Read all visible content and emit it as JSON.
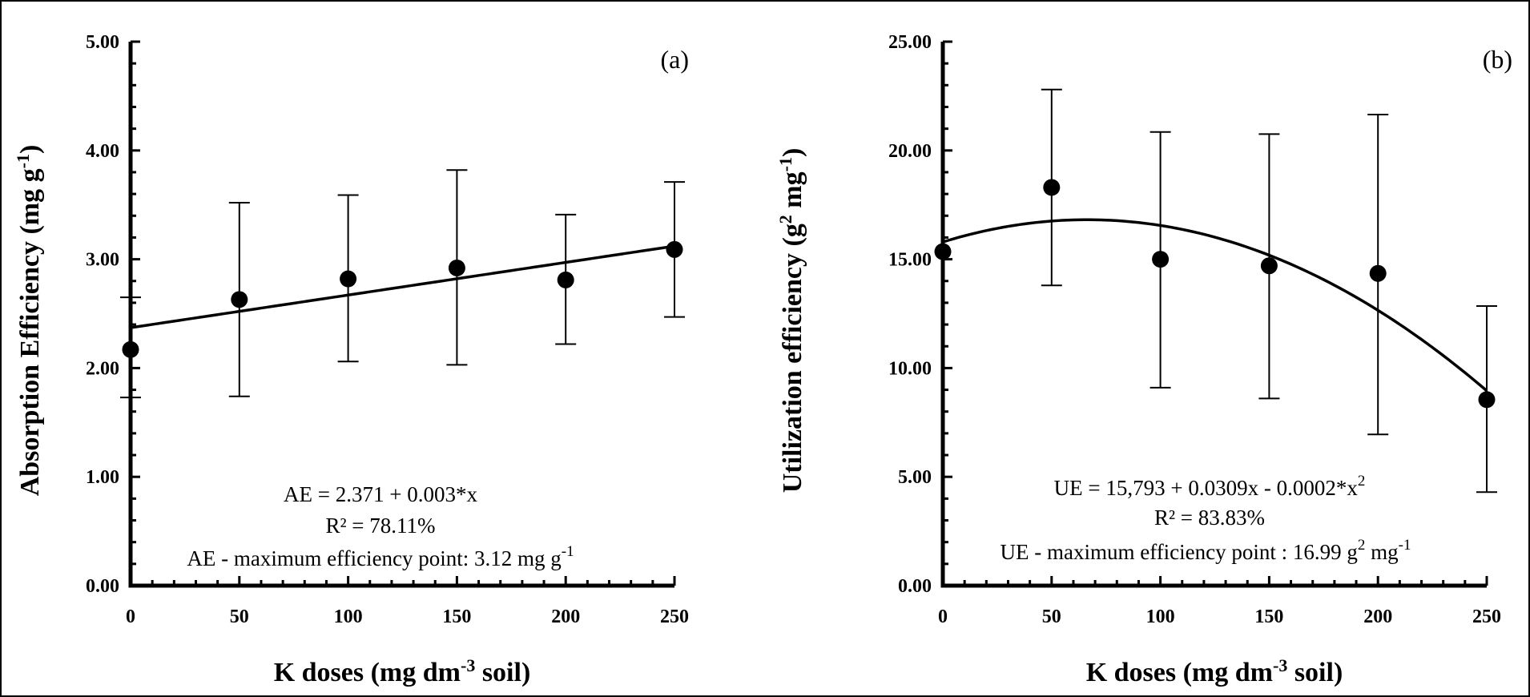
{
  "chart_data": [
    {
      "type": "scatter",
      "panel_label": "(a)",
      "x": [
        0,
        50,
        100,
        150,
        200,
        250
      ],
      "y": [
        2.17,
        2.63,
        2.82,
        2.92,
        2.81,
        3.09
      ],
      "y_err_upper": [
        2.65,
        3.52,
        3.59,
        3.82,
        3.41,
        3.71
      ],
      "y_err_lower": [
        1.73,
        1.74,
        2.06,
        2.03,
        2.22,
        2.47
      ],
      "fit": {
        "type": "linear",
        "coef": [
          2.371,
          0.003
        ]
      },
      "xlim": [
        0,
        250
      ],
      "ylim": [
        0,
        5
      ],
      "xticks": [
        "0",
        "50",
        "100",
        "150",
        "200",
        "250"
      ],
      "yticks": [
        "0.00",
        "1.00",
        "2.00",
        "3.00",
        "4.00",
        "5.00"
      ],
      "ylabel_main": "Absorption Efficiency (mg g",
      "ylabel_sup": "-1",
      "ylabel_end": ")",
      "xlabel_main": "K doses (mg dm",
      "xlabel_sup": "-3",
      "xlabel_end": " soil)",
      "equation": "AE = 2.371 + 0.003*x",
      "r2": "R² = 78.11%",
      "max_point_text": "AE -  maximum efficiency point: 3.12 mg g",
      "max_point_sup": "-1"
    },
    {
      "type": "scatter",
      "panel_label": "(b)",
      "x": [
        0,
        50,
        100,
        150,
        200,
        250
      ],
      "y": [
        15.35,
        18.3,
        15.0,
        14.7,
        14.35,
        8.55
      ],
      "y_err_upper": [
        null,
        22.8,
        20.85,
        20.75,
        21.65,
        12.85
      ],
      "y_err_lower": [
        null,
        13.8,
        9.1,
        8.6,
        6.95,
        4.3
      ],
      "fit": {
        "type": "quadratic",
        "coef": [
          15.793,
          0.0309,
          -0.000233
        ]
      },
      "xlim": [
        0,
        250
      ],
      "ylim": [
        0,
        25
      ],
      "xticks": [
        "0",
        "50",
        "100",
        "150",
        "200",
        "250"
      ],
      "yticks": [
        "0.00",
        "5.00",
        "10.00",
        "15.00",
        "20.00",
        "25.00"
      ],
      "ylabel_main": "Utilization efficiency (g",
      "ylabel_sup": "2",
      "ylabel_mid": " mg",
      "ylabel_sup2": "-1",
      "ylabel_end": ")",
      "xlabel_main": "K doses (mg dm",
      "xlabel_sup": "-3",
      "xlabel_end": " soil)",
      "equation": "UE = 15,793 + 0.0309x - 0.0002*x",
      "equation_sup": "2",
      "r2": "R² = 83.83%",
      "max_point_text": "UE -  maximum efficiency point : 16.99 g",
      "max_point_sup": "2",
      "max_point_mid": " mg",
      "max_point_sup2": "-1"
    }
  ]
}
